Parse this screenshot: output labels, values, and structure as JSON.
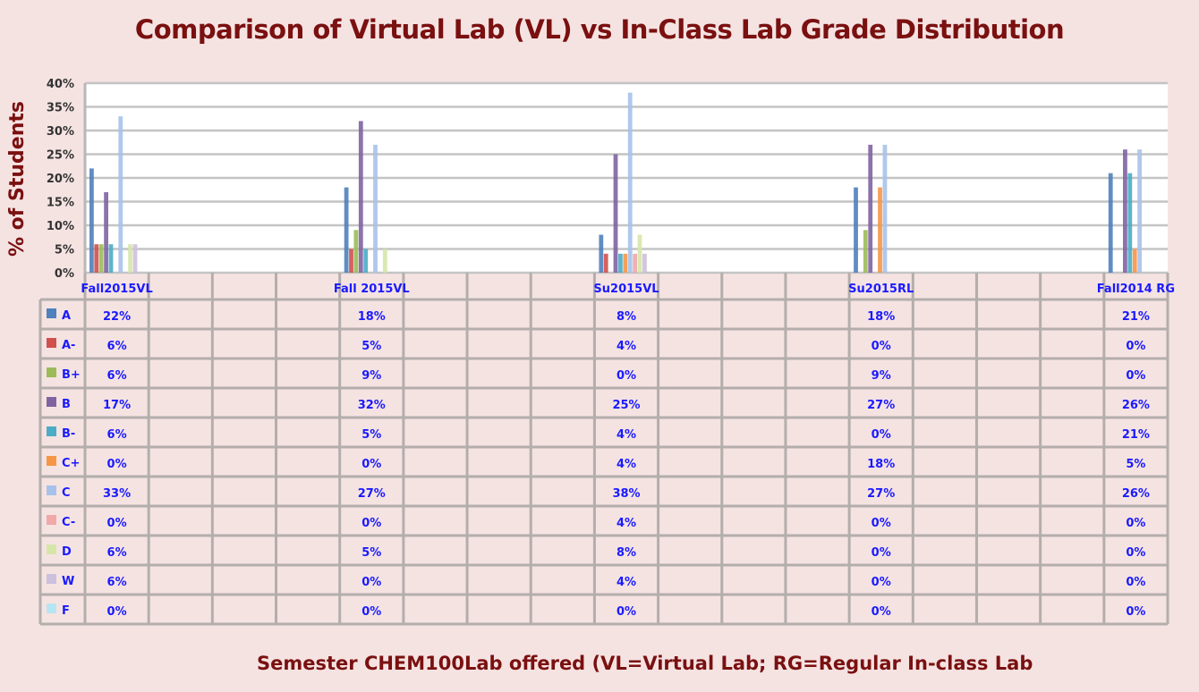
{
  "chart_data": {
    "type": "bar",
    "title": "Comparison of Virtual Lab (VL) vs In-Class Lab Grade Distribution",
    "ylabel": "% of Students",
    "xlabel": "Semester CHEM100Lab offered (VL=Virtual Lab; RG=Regular In-class Lab",
    "ylim": [
      0,
      40
    ],
    "yticks": [
      "0%",
      "5%",
      "10%",
      "15%",
      "20%",
      "25%",
      "30%",
      "35%",
      "40%"
    ],
    "grid": true,
    "legend": "data-table",
    "categories": [
      "Fall2015VL",
      "Fall 2015VL",
      "Su2015VL",
      "Su2015RL",
      "Fall2014 RG"
    ],
    "series": [
      {
        "name": "A",
        "color": "#4f81bd",
        "values": [
          22,
          18,
          8,
          18,
          21
        ]
      },
      {
        "name": "A-",
        "color": "#d0504d",
        "values": [
          6,
          5,
          4,
          0,
          0
        ]
      },
      {
        "name": "B+",
        "color": "#9bbb59",
        "values": [
          6,
          9,
          0,
          9,
          0
        ]
      },
      {
        "name": "B",
        "color": "#8064a2",
        "values": [
          17,
          32,
          25,
          27,
          26
        ]
      },
      {
        "name": "B-",
        "color": "#4bacc6",
        "values": [
          6,
          5,
          4,
          0,
          21
        ]
      },
      {
        "name": "C+",
        "color": "#f79646",
        "values": [
          0,
          0,
          4,
          18,
          5
        ]
      },
      {
        "name": "C",
        "color": "#a7c2ea",
        "values": [
          33,
          27,
          38,
          27,
          26
        ]
      },
      {
        "name": "C-",
        "color": "#f0a8a8",
        "values": [
          0,
          0,
          4,
          0,
          0
        ]
      },
      {
        "name": "D",
        "color": "#d6e6a8",
        "values": [
          6,
          5,
          8,
          0,
          0
        ]
      },
      {
        "name": "W",
        "color": "#cdc0de",
        "values": [
          6,
          0,
          4,
          0,
          0
        ]
      },
      {
        "name": "F",
        "color": "#b6e6f4",
        "values": [
          0,
          0,
          0,
          0,
          0
        ]
      }
    ]
  }
}
